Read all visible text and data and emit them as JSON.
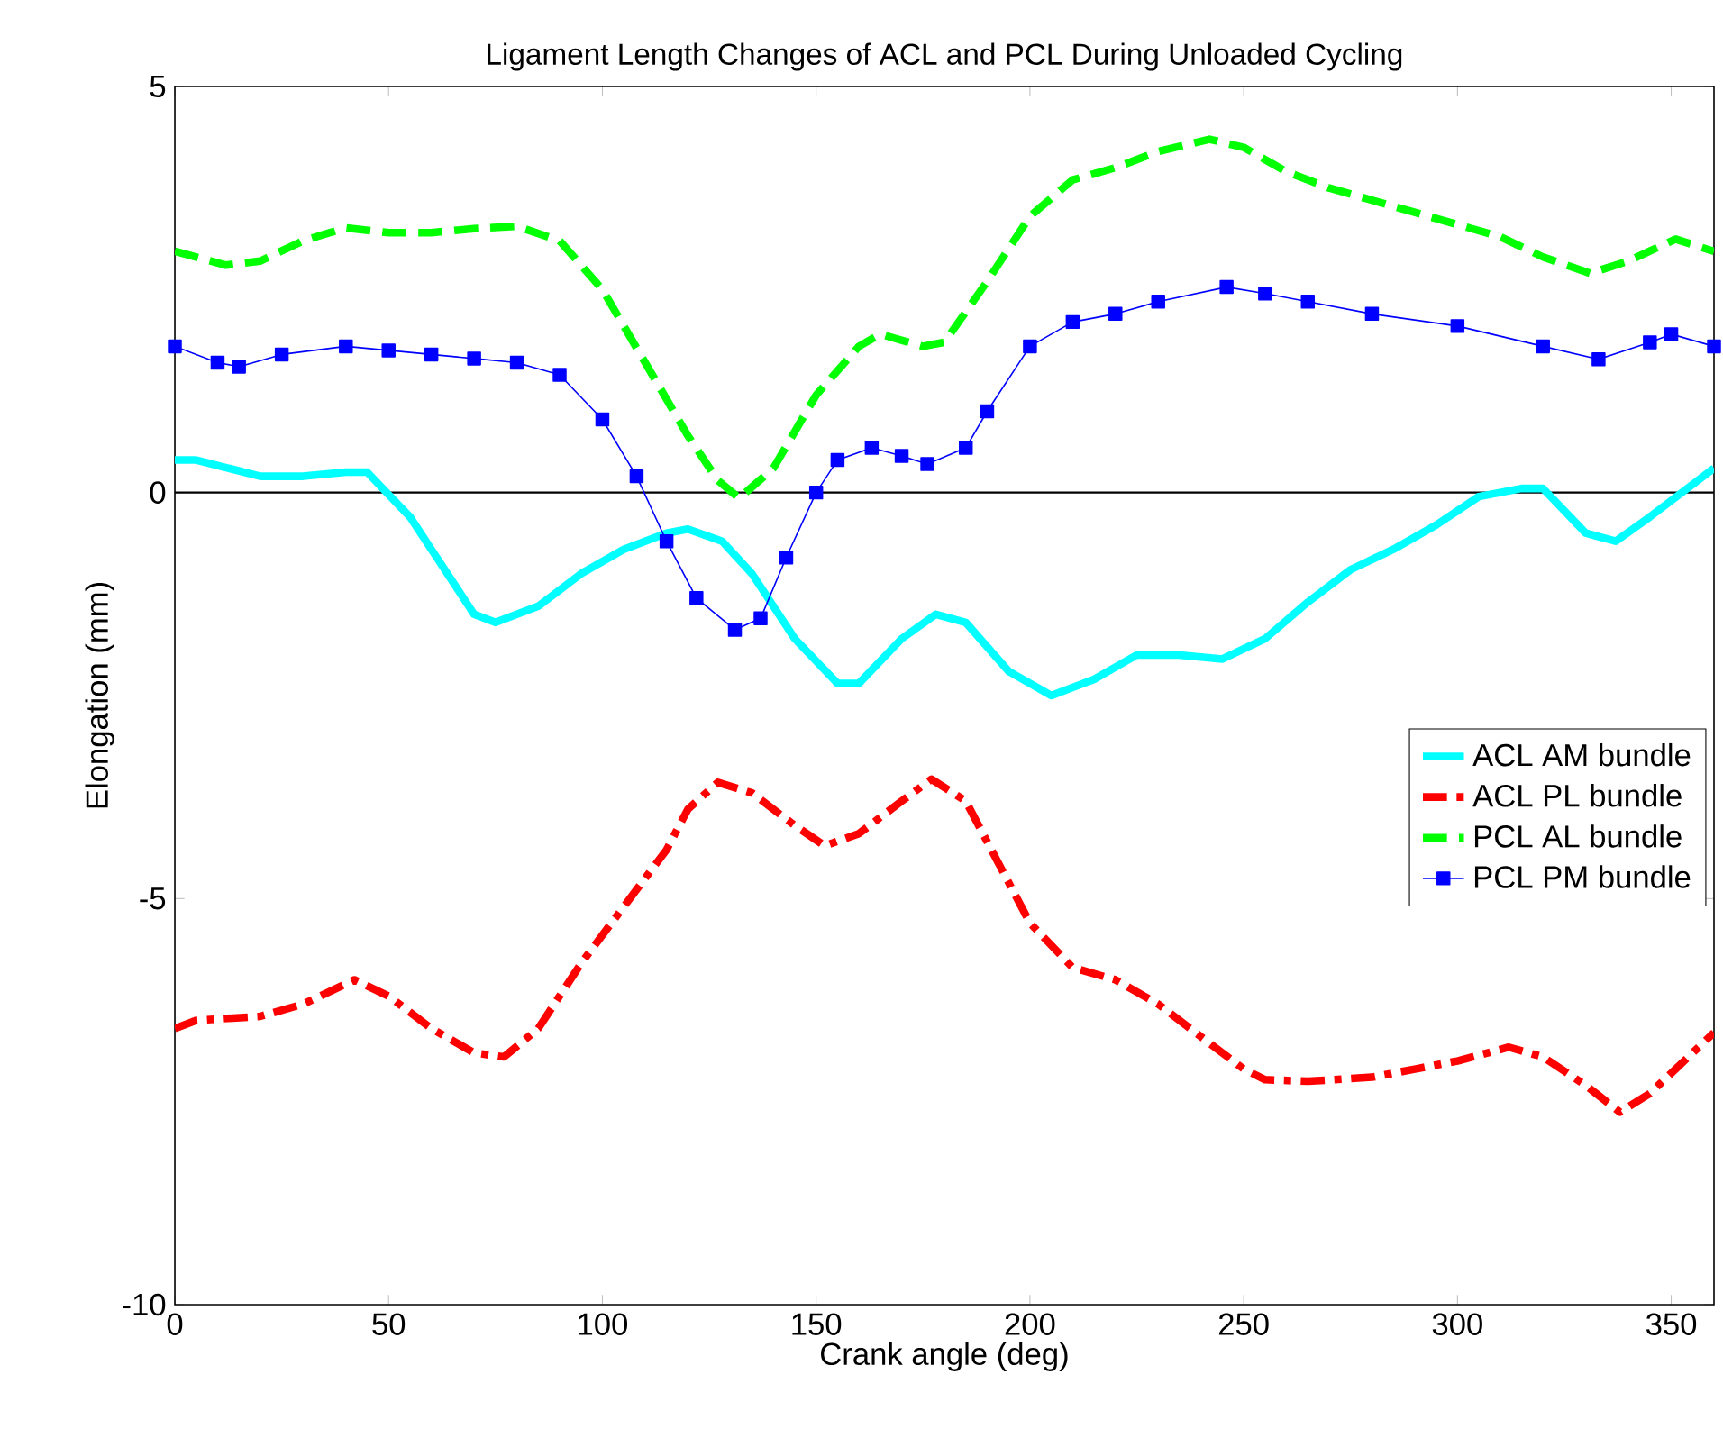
{
  "chart_data": {
    "type": "line",
    "title": "Ligament Length Changes of ACL and PCL During Unloaded Cycling",
    "xlabel": "Crank angle (deg)",
    "ylabel": "Elongation (mm)",
    "xlim": [
      0,
      360
    ],
    "ylim": [
      -10,
      5
    ],
    "xticks": [
      0,
      50,
      100,
      150,
      200,
      250,
      300,
      350
    ],
    "yticks": [
      -10,
      -5,
      0,
      5
    ],
    "grid": false,
    "legend": "right",
    "ref_lines": [
      {
        "axis": "y",
        "value": 0,
        "color": "#000000"
      }
    ],
    "series": [
      {
        "name": "ACL AM bundle",
        "color": "#00ffff",
        "line_style": "solid",
        "marker": "none",
        "x": [
          0,
          5,
          20,
          30,
          40,
          45,
          55,
          60,
          70,
          75,
          85,
          95,
          105,
          115,
          120,
          128,
          135,
          145,
          155,
          160,
          170,
          178,
          185,
          195,
          205,
          215,
          225,
          235,
          245,
          255,
          265,
          275,
          285,
          295,
          305,
          315,
          320,
          330,
          337,
          345,
          355,
          360
        ],
        "values": [
          0.4,
          0.4,
          0.2,
          0.2,
          0.25,
          0.25,
          -0.3,
          -0.7,
          -1.5,
          -1.6,
          -1.4,
          -1.0,
          -0.7,
          -0.5,
          -0.45,
          -0.6,
          -1.0,
          -1.8,
          -2.35,
          -2.35,
          -1.8,
          -1.5,
          -1.6,
          -2.2,
          -2.5,
          -2.3,
          -2.0,
          -2.0,
          -2.05,
          -1.8,
          -1.35,
          -0.95,
          -0.7,
          -0.4,
          -0.05,
          0.05,
          0.05,
          -0.5,
          -0.6,
          -0.3,
          0.1,
          0.3
        ]
      },
      {
        "name": "ACL PL bundle",
        "color": "#ff0000",
        "line_style": "dashdot",
        "marker": "none",
        "x": [
          0,
          5,
          20,
          30,
          42,
          50,
          60,
          70,
          77,
          85,
          95,
          105,
          115,
          120,
          127,
          135,
          145,
          152,
          160,
          170,
          177,
          185,
          190,
          200,
          210,
          220,
          230,
          240,
          250,
          255,
          265,
          280,
          290,
          300,
          312,
          320,
          330,
          338,
          345,
          352,
          360
        ],
        "values": [
          -6.6,
          -6.5,
          -6.45,
          -6.3,
          -6.0,
          -6.2,
          -6.6,
          -6.9,
          -6.95,
          -6.6,
          -5.8,
          -5.1,
          -4.4,
          -3.9,
          -3.57,
          -3.7,
          -4.1,
          -4.35,
          -4.2,
          -3.8,
          -3.53,
          -3.8,
          -4.3,
          -5.3,
          -5.85,
          -6.0,
          -6.3,
          -6.7,
          -7.1,
          -7.23,
          -7.25,
          -7.2,
          -7.1,
          -7.0,
          -6.83,
          -6.95,
          -7.3,
          -7.63,
          -7.4,
          -7.05,
          -6.65
        ]
      },
      {
        "name": "PCL AL bundle",
        "color": "#00ff00",
        "line_style": "dashed",
        "marker": "none",
        "x": [
          0,
          12,
          20,
          30,
          40,
          50,
          60,
          70,
          80,
          90,
          100,
          110,
          120,
          127,
          132,
          140,
          150,
          160,
          165,
          175,
          180,
          190,
          200,
          210,
          220,
          230,
          242,
          250,
          260,
          270,
          280,
          290,
          300,
          310,
          320,
          331,
          340,
          351,
          360
        ],
        "values": [
          2.97,
          2.8,
          2.85,
          3.1,
          3.26,
          3.2,
          3.2,
          3.25,
          3.28,
          3.1,
          2.5,
          1.6,
          0.7,
          0.15,
          -0.07,
          0.3,
          1.2,
          1.8,
          1.95,
          1.8,
          1.85,
          2.6,
          3.4,
          3.85,
          4.0,
          4.2,
          4.35,
          4.25,
          3.95,
          3.75,
          3.6,
          3.45,
          3.3,
          3.15,
          2.9,
          2.7,
          2.85,
          3.12,
          2.97
        ]
      },
      {
        "name": "PCL PM bundle",
        "color": "#0000ff",
        "line_style": "solid",
        "marker": "square",
        "x": [
          0,
          10,
          15,
          25,
          40,
          50,
          60,
          70,
          80,
          90,
          100,
          108,
          115,
          122,
          131,
          137,
          143,
          150,
          155,
          163,
          170,
          176,
          185,
          190,
          200,
          210,
          220,
          230,
          246,
          255,
          265,
          280,
          300,
          320,
          333,
          345,
          350,
          360
        ],
        "values": [
          1.8,
          1.6,
          1.55,
          1.7,
          1.8,
          1.75,
          1.7,
          1.65,
          1.6,
          1.45,
          0.9,
          0.2,
          -0.6,
          -1.3,
          -1.69,
          -1.55,
          -0.8,
          0.0,
          0.4,
          0.55,
          0.45,
          0.35,
          0.55,
          1.0,
          1.8,
          2.1,
          2.2,
          2.35,
          2.53,
          2.45,
          2.35,
          2.2,
          2.05,
          1.8,
          1.64,
          1.85,
          1.95,
          1.8
        ]
      }
    ]
  }
}
